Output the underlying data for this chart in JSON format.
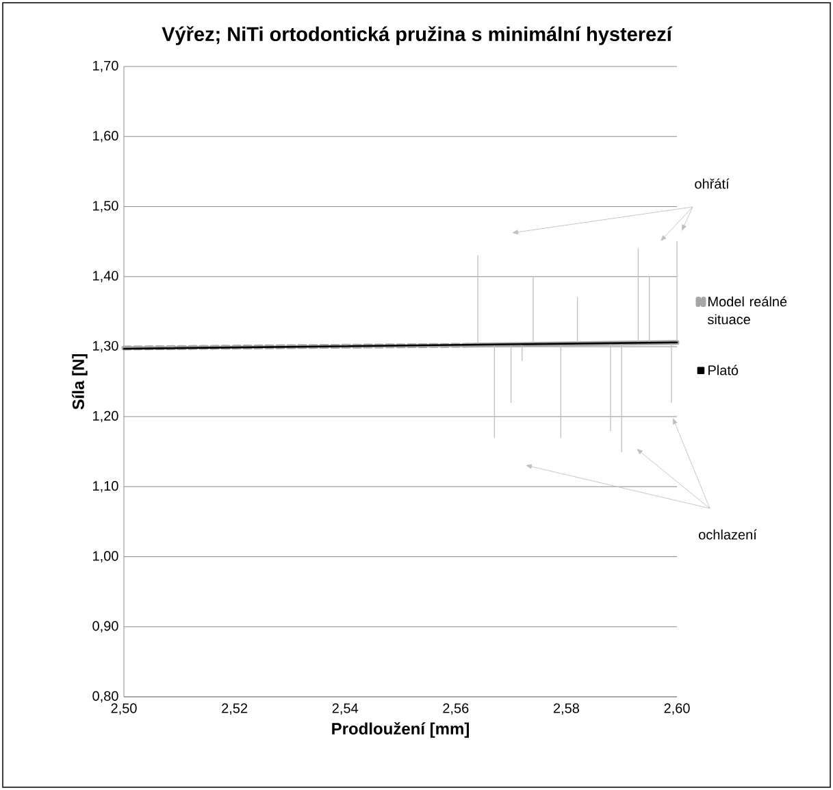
{
  "chart_data": {
    "type": "line",
    "title": "Výřez; NiTi ortodontická pružina s minimální hysterezí",
    "xlabel": "Prodloužení [mm]",
    "ylabel": "Síla [N]",
    "xlim": [
      2.5,
      2.6
    ],
    "ylim": [
      0.8,
      1.7
    ],
    "xticks": [
      {
        "value": 2.5,
        "label": "2,50"
      },
      {
        "value": 2.52,
        "label": "2,52"
      },
      {
        "value": 2.54,
        "label": "2,54"
      },
      {
        "value": 2.56,
        "label": "2,56"
      },
      {
        "value": 2.58,
        "label": "2,58"
      },
      {
        "value": 2.6,
        "label": "2,60"
      }
    ],
    "yticks": [
      {
        "value": 0.8,
        "label": "0,80"
      },
      {
        "value": 0.9,
        "label": "0,90"
      },
      {
        "value": 1.0,
        "label": "1,00"
      },
      {
        "value": 1.1,
        "label": "1,10"
      },
      {
        "value": 1.2,
        "label": "1,20"
      },
      {
        "value": 1.3,
        "label": "1,30"
      },
      {
        "value": 1.4,
        "label": "1,40"
      },
      {
        "value": 1.5,
        "label": "1,50"
      },
      {
        "value": 1.6,
        "label": "1,60"
      },
      {
        "value": 1.7,
        "label": "1,70"
      }
    ],
    "grid": "y",
    "legend": "right",
    "marker": "none",
    "annotations": [
      "ohřátí",
      "ochlazení"
    ],
    "series": [
      {
        "name": "Model reálné situace",
        "color": "#a6a6a6",
        "line_style": "dashed",
        "x": [
          2.5,
          2.563
        ],
        "values": [
          1.298,
          1.302
        ]
      },
      {
        "color": "#a6a6a6",
        "line_style": "solid",
        "x": [
          2.563,
          2.6
        ],
        "values": [
          1.302,
          1.306
        ]
      },
      {
        "color": "#bfbfbf",
        "line_style": "solid",
        "x": [
          2.564,
          2.564,
          2.564,
          2.567,
          2.567,
          2.567,
          2.57,
          2.57,
          2.57,
          2.572,
          2.572,
          2.572,
          2.574,
          2.574,
          2.574,
          2.579,
          2.579,
          2.579,
          2.582,
          2.582,
          2.582,
          2.588,
          2.588,
          2.588,
          2.59,
          2.59,
          2.59,
          2.593,
          2.593,
          2.593,
          2.595,
          2.595,
          2.595,
          2.599,
          2.599,
          2.599,
          2.6,
          2.6
        ],
        "values": [
          1.303,
          1.43,
          1.303,
          1.303,
          1.17,
          1.303,
          1.303,
          1.22,
          1.303,
          1.303,
          1.28,
          1.303,
          1.304,
          1.4,
          1.304,
          1.304,
          1.17,
          1.304,
          1.304,
          1.37,
          1.304,
          1.305,
          1.18,
          1.305,
          1.305,
          1.15,
          1.305,
          1.305,
          1.44,
          1.305,
          1.305,
          1.4,
          1.305,
          1.306,
          1.22,
          1.306,
          1.306,
          1.45
        ]
      },
      {
        "name": "Plató",
        "color": "#000000",
        "line_style": "solid",
        "x": [
          2.5,
          2.6
        ],
        "values": [
          1.297,
          1.306
        ]
      }
    ]
  }
}
